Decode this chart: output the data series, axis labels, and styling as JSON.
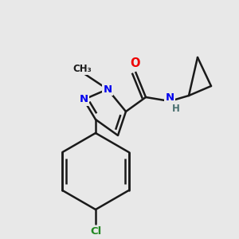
{
  "background_color": "#e8e8e8",
  "bond_color": "#1a1a1a",
  "N_color": "#0000ee",
  "O_color": "#ee0000",
  "Cl_color": "#228822",
  "H_color": "#4a7070",
  "line_width": 1.8,
  "figsize": [
    3.0,
    3.0
  ],
  "dpi": 100,
  "xlim": [
    0,
    300
  ],
  "ylim": [
    0,
    300
  ]
}
